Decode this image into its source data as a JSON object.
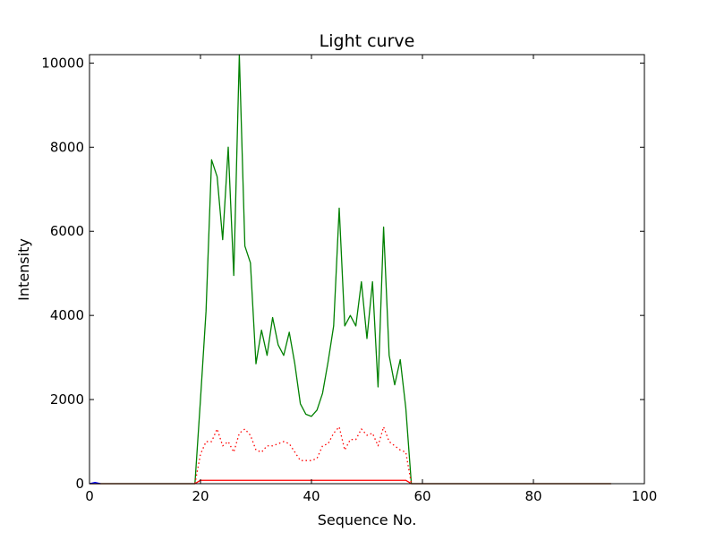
{
  "chart_data": {
    "type": "line",
    "title": "Light curve",
    "xlabel": "Sequence No.",
    "ylabel": "Intensity",
    "xlim": [
      0,
      100
    ],
    "ylim": [
      0,
      10200
    ],
    "xticks": [
      0,
      20,
      40,
      60,
      80,
      100
    ],
    "yticks": [
      0,
      2000,
      4000,
      6000,
      8000,
      10000
    ],
    "grid": false,
    "legend": "none",
    "series": [
      {
        "style": "solid",
        "color": "#008000",
        "x": [
          0,
          1,
          2,
          3,
          4,
          5,
          6,
          7,
          8,
          9,
          10,
          11,
          12,
          13,
          14,
          15,
          16,
          17,
          18,
          19,
          20,
          21,
          22,
          23,
          24,
          25,
          26,
          27,
          28,
          29,
          30,
          31,
          32,
          33,
          34,
          35,
          36,
          37,
          38,
          39,
          40,
          41,
          42,
          43,
          44,
          45,
          46,
          47,
          48,
          49,
          50,
          51,
          52,
          53,
          54,
          55,
          56,
          57,
          58,
          59,
          60,
          61,
          62,
          63,
          64,
          65,
          66,
          67,
          68,
          69,
          70,
          71,
          72,
          73,
          74,
          75,
          76,
          77,
          78,
          79,
          80,
          81,
          82,
          83,
          84,
          85,
          86,
          87,
          88,
          89,
          90,
          91,
          92,
          93,
          94
        ],
        "y": [
          0,
          0,
          0,
          0,
          0,
          0,
          0,
          0,
          0,
          0,
          0,
          0,
          0,
          0,
          0,
          0,
          0,
          0,
          0,
          0,
          2000,
          4100,
          7700,
          7300,
          5800,
          8000,
          4950,
          10200,
          5650,
          5250,
          2850,
          3650,
          3050,
          3950,
          3300,
          3050,
          3600,
          2850,
          1900,
          1650,
          1600,
          1750,
          2150,
          2900,
          3750,
          6550,
          3750,
          4000,
          3750,
          4800,
          3450,
          4800,
          2300,
          6100,
          3050,
          2350,
          2950,
          1800,
          0,
          0,
          0,
          0,
          0,
          0,
          0,
          0,
          0,
          0,
          0,
          0,
          0,
          0,
          0,
          0,
          0,
          0,
          0,
          0,
          0,
          0,
          0,
          0,
          0,
          0,
          0,
          0,
          0,
          0,
          0,
          0,
          0,
          0,
          0,
          0,
          0
        ]
      },
      {
        "style": "dotted",
        "color": "#ff0000",
        "x": [
          19,
          20,
          21,
          22,
          23,
          24,
          25,
          26,
          27,
          28,
          29,
          30,
          31,
          32,
          33,
          34,
          35,
          36,
          37,
          38,
          39,
          40,
          41,
          42,
          43,
          44,
          45,
          46,
          47,
          48,
          49,
          50,
          51,
          52,
          53,
          54,
          55,
          56,
          57,
          58
        ],
        "y": [
          0,
          700,
          1000,
          1000,
          1300,
          900,
          1000,
          750,
          1200,
          1300,
          1150,
          800,
          750,
          900,
          900,
          950,
          1000,
          950,
          750,
          550,
          550,
          550,
          600,
          900,
          950,
          1200,
          1350,
          800,
          1050,
          1050,
          1300,
          1150,
          1200,
          900,
          1350,
          1000,
          900,
          800,
          750,
          0
        ]
      },
      {
        "style": "solid",
        "color": "#ff0000",
        "x": [
          0,
          19,
          20,
          57,
          58,
          94
        ],
        "y": [
          0,
          0,
          80,
          80,
          0,
          0
        ]
      },
      {
        "style": "solid",
        "color": "#0000ff",
        "x": [
          0,
          1,
          2
        ],
        "y": [
          0,
          30,
          0
        ]
      }
    ]
  }
}
